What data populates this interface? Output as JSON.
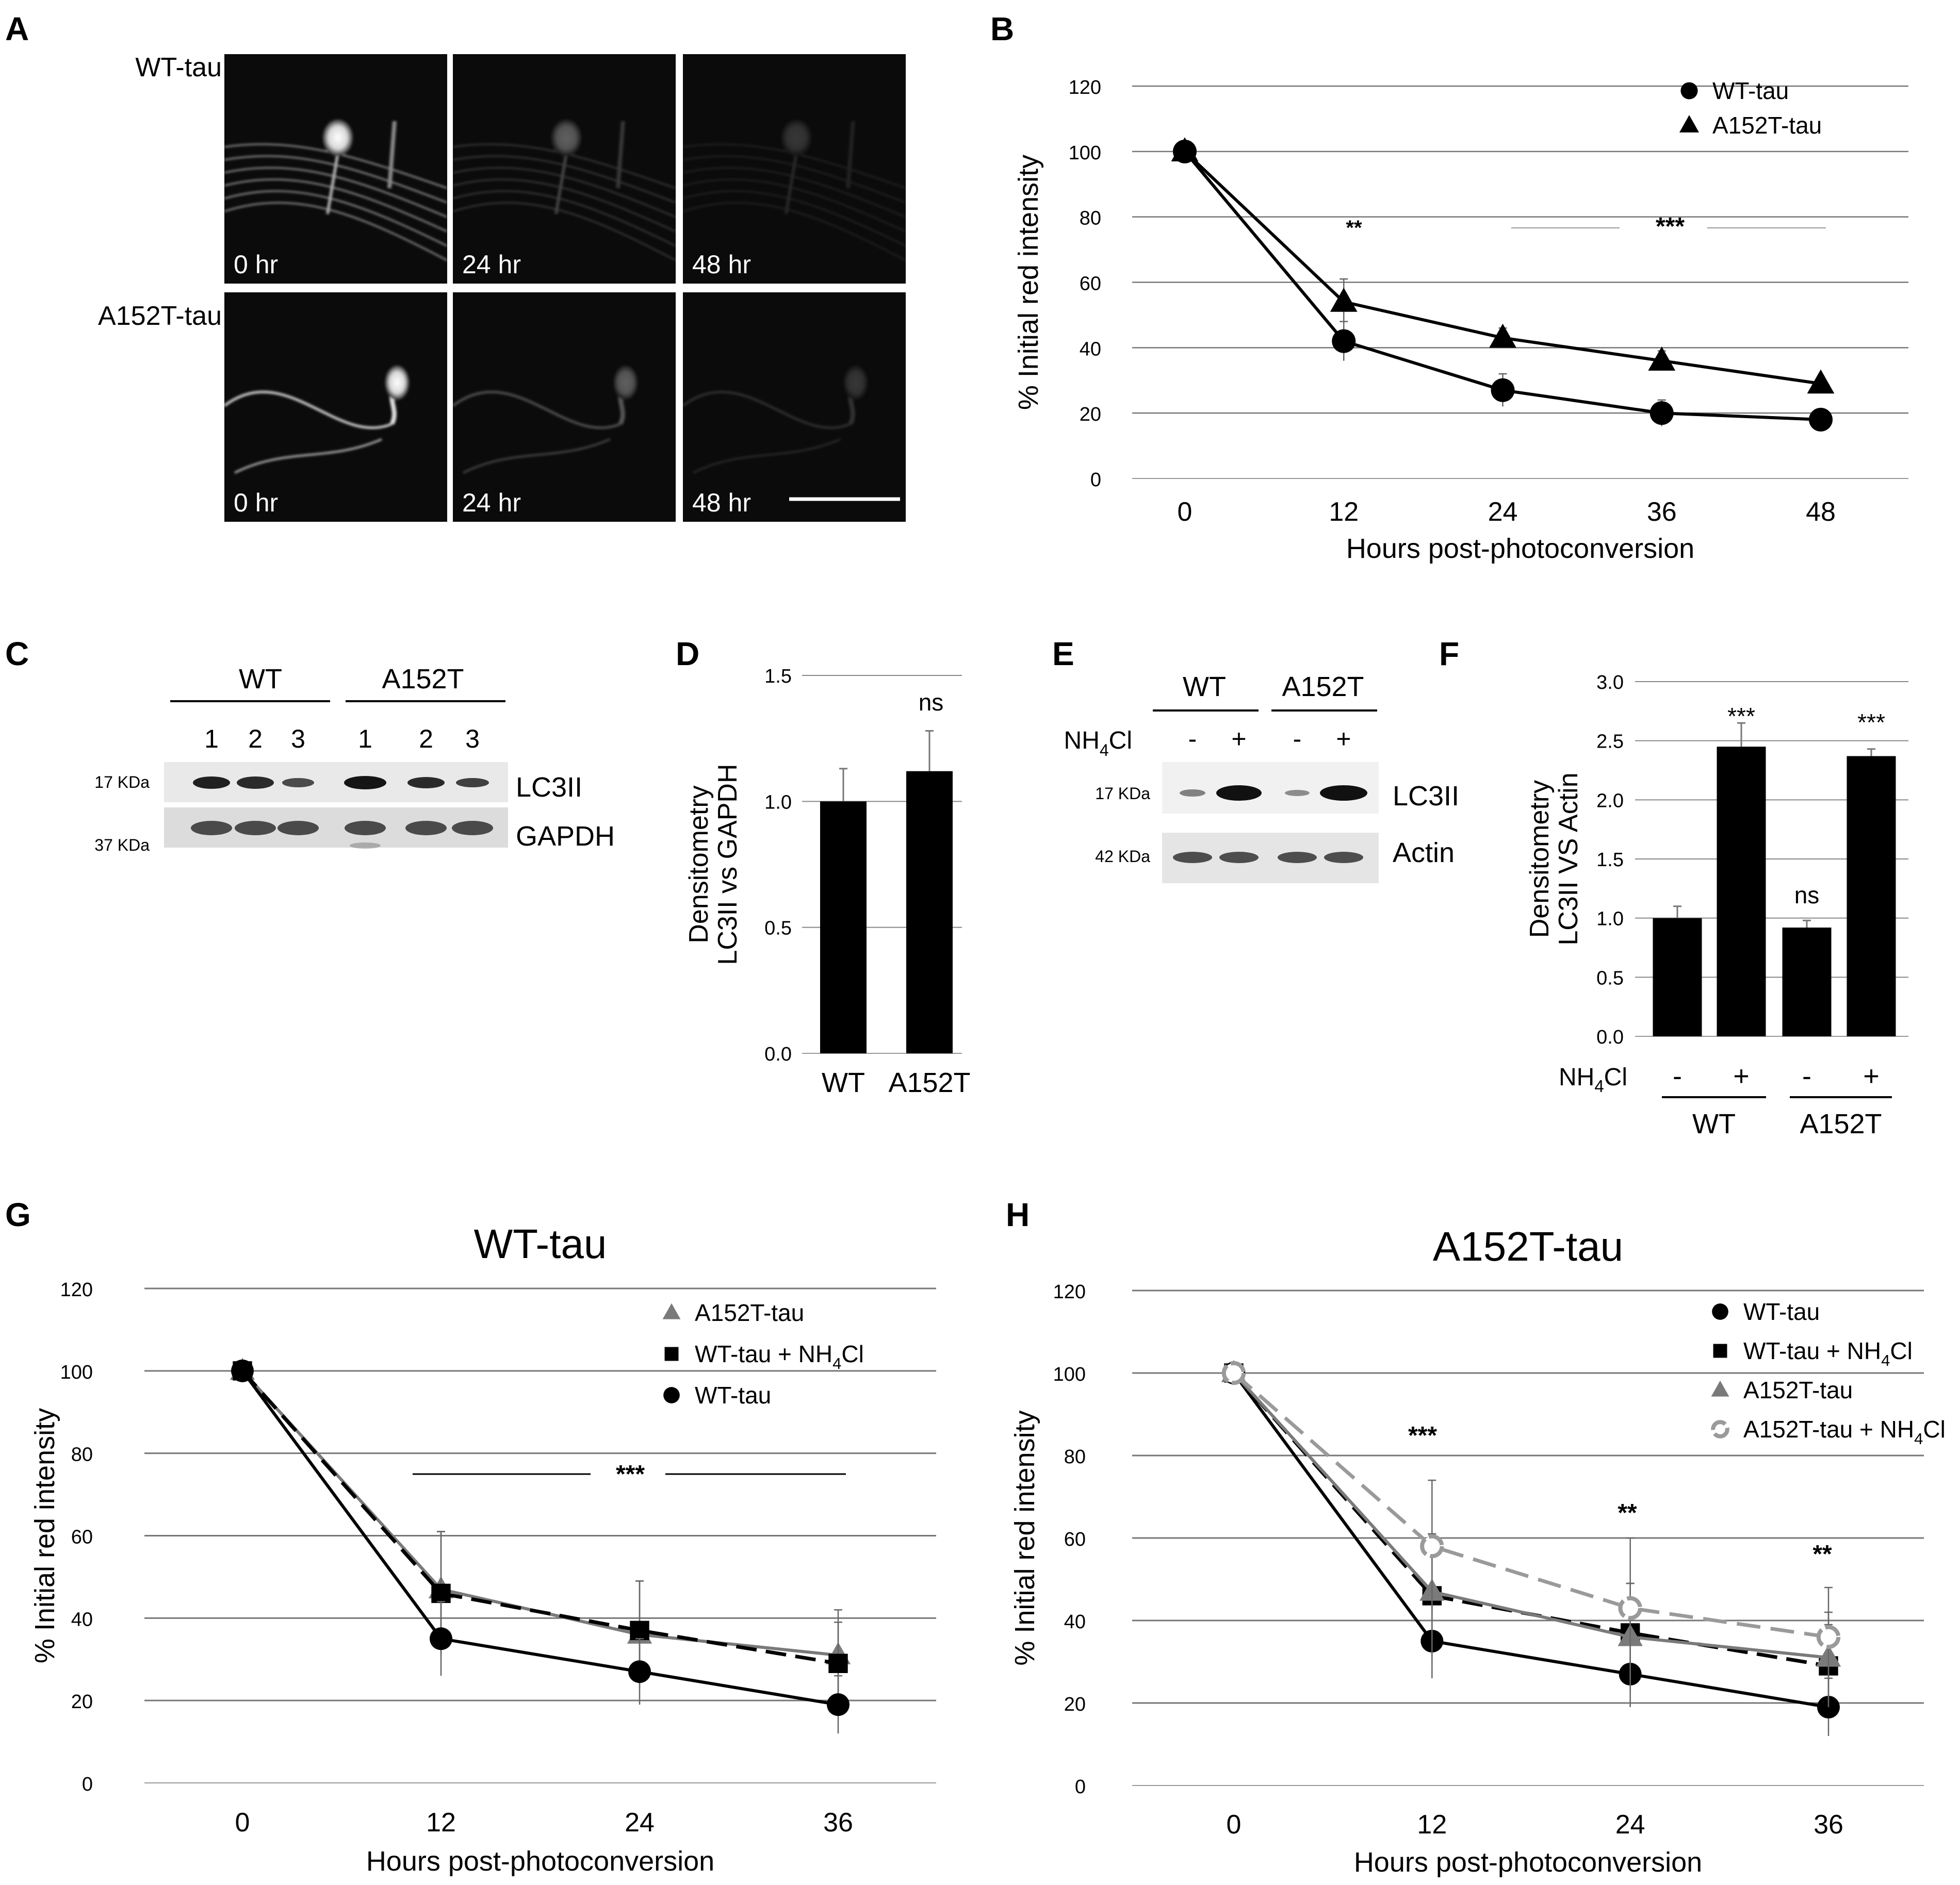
{
  "colors": {
    "black": "#000000",
    "gray": "#7a7a7a",
    "lightgray": "#9a9a9a",
    "grid": "#777777"
  },
  "panelA": {
    "label": "A",
    "rows": [
      {
        "name": "WT-tau",
        "times": [
          "0 hr",
          "24 hr",
          "48 hr"
        ]
      },
      {
        "name": "A152T-tau",
        "times": [
          "0 hr",
          "24 hr",
          "48 hr"
        ]
      }
    ]
  },
  "panelC": {
    "label": "C",
    "groups": [
      "WT",
      "A152T"
    ],
    "lanes": [
      "1",
      "2",
      "3",
      "1",
      "2",
      "3"
    ],
    "mw": [
      "17 KDa",
      "37 KDa"
    ],
    "bands": [
      "LC3II",
      "GAPDH"
    ]
  },
  "panelE": {
    "label": "E",
    "groups": [
      "WT",
      "A152T"
    ],
    "treatment": "NH",
    "treatment_sub": "4",
    "treatment_tail": "Cl",
    "signs": [
      "-",
      "+",
      "-",
      "+"
    ],
    "mw": [
      "17 KDa",
      "42 KDa"
    ],
    "bands": [
      "LC3II",
      "Actin"
    ]
  },
  "chart_data": [
    {
      "panel": "B",
      "type": "line",
      "x": [
        0,
        12,
        24,
        36,
        48
      ],
      "xlabel": "Hours post-photoconversion",
      "ylabel": "% Initial red intensity",
      "ylim": [
        0,
        120
      ],
      "yticks": [
        0,
        20,
        40,
        60,
        80,
        100,
        120
      ],
      "legend_position": "top-right",
      "series": [
        {
          "name": "WT-tau",
          "values": [
            100,
            42,
            27,
            20,
            18
          ],
          "err": [
            0,
            6,
            5,
            4,
            2
          ]
        },
        {
          "name": "A152T-tau",
          "values": [
            100,
            54,
            43,
            36,
            29
          ],
          "err": [
            0,
            7,
            3,
            3,
            2
          ]
        }
      ],
      "annotations": [
        "**",
        "***"
      ]
    },
    {
      "panel": "D",
      "type": "bar",
      "categories": [
        "WT",
        "A152T"
      ],
      "values": [
        1.0,
        1.12
      ],
      "err": [
        0.13,
        0.16
      ],
      "ylabel_lines": [
        "Densitometry",
        "LC3II vs GAPDH"
      ],
      "ylim": [
        0,
        1.5
      ],
      "yticks": [
        "0.0",
        "0.5",
        "1.0",
        "1.5"
      ],
      "annotations": [
        "ns"
      ]
    },
    {
      "panel": "F",
      "type": "bar",
      "categories": [
        "-",
        "+",
        "-",
        "+"
      ],
      "group_labels": [
        "WT",
        "A152T"
      ],
      "treatment": "NH",
      "treatment_sub": "4",
      "treatment_tail": "Cl",
      "values": [
        1.0,
        2.45,
        0.92,
        2.37
      ],
      "err": [
        0.1,
        0.2,
        0.06,
        0.06
      ],
      "ylabel_lines": [
        "Densitometry",
        "LC3II VS Actin"
      ],
      "ylim": [
        0,
        3.0
      ],
      "yticks": [
        "0.0",
        "0.5",
        "1.0",
        "1.5",
        "2.0",
        "2.5",
        "3.0"
      ],
      "annotations": [
        "***",
        "ns",
        "***"
      ]
    },
    {
      "panel": "G",
      "type": "line",
      "title": "WT-tau",
      "x": [
        0,
        12,
        24,
        36
      ],
      "xlabel": "Hours post-photoconversion",
      "ylabel": "% Initial red intensity",
      "ylim": [
        0,
        120
      ],
      "yticks": [
        0,
        20,
        40,
        60,
        80,
        100,
        120
      ],
      "legend_position": "top-right",
      "series": [
        {
          "name": "A152T-tau",
          "values": [
            100,
            47,
            36,
            31
          ],
          "err": [
            0,
            14,
            13,
            11
          ]
        },
        {
          "name": "WT-tau + NH",
          "name_sub": "4",
          "name_tail": "Cl",
          "values": [
            100,
            46,
            37,
            29
          ],
          "err": [
            0,
            15,
            12,
            10
          ]
        },
        {
          "name": "WT-tau",
          "values": [
            100,
            35,
            27,
            19
          ],
          "err": [
            0,
            9,
            8,
            7
          ]
        }
      ],
      "annotations": [
        "***"
      ]
    },
    {
      "panel": "H",
      "type": "line",
      "title": "A152T-tau",
      "x": [
        0,
        12,
        24,
        36
      ],
      "xlabel": "Hours post-photoconversion",
      "ylabel": "% Initial red intensity",
      "ylim": [
        0,
        120
      ],
      "yticks": [
        0,
        20,
        40,
        60,
        80,
        100,
        120
      ],
      "legend_position": "top-right",
      "series": [
        {
          "name": "WT-tau",
          "values": [
            100,
            35,
            27,
            19
          ],
          "err": [
            0,
            9,
            8,
            7
          ]
        },
        {
          "name": "WT-tau + NH",
          "name_sub": "4",
          "name_tail": "Cl",
          "values": [
            100,
            46,
            37,
            29
          ],
          "err": [
            0,
            15,
            12,
            10
          ]
        },
        {
          "name": "A152T-tau",
          "values": [
            100,
            47,
            36,
            31
          ],
          "err": [
            0,
            14,
            13,
            11
          ]
        },
        {
          "name": "A152T-tau + NH",
          "name_sub": "4",
          "name_tail": "Cl",
          "values": [
            100,
            58,
            43,
            36
          ],
          "err": [
            0,
            16,
            17,
            12
          ]
        }
      ],
      "annotations": [
        "***",
        "**",
        "**"
      ]
    }
  ]
}
